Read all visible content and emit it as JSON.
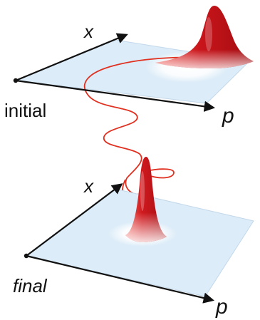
{
  "labels": {
    "initial_x": "x",
    "initial_p": "p",
    "initial_caption": "initial",
    "final_x": "x",
    "final_p": "p",
    "final_caption": "final"
  },
  "colors": {
    "plane_fill": "#dcecf8",
    "plane_edge": "#c3d8ea",
    "axis": "#111111",
    "trajectory": "#e03020",
    "peak_dark": "#b80f14",
    "peak_light": "#ff8e88"
  }
}
